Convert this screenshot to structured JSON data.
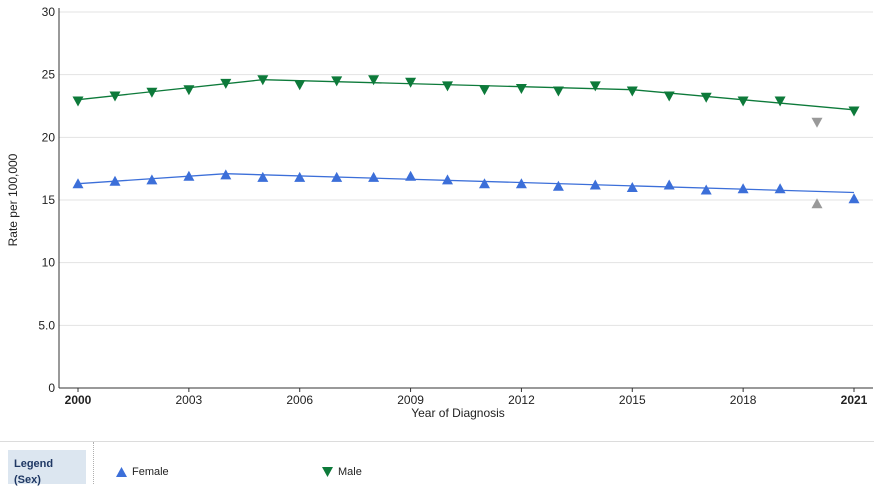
{
  "chart_data": {
    "type": "line",
    "title": "",
    "xlabel": "Year of Diagnosis",
    "ylabel": "Rate per 100,000",
    "xlim": [
      2000,
      2021
    ],
    "ylim": [
      0,
      30
    ],
    "x_ticks": [
      2000,
      2003,
      2006,
      2009,
      2012,
      2015,
      2018,
      2021
    ],
    "x_tick_labels": [
      "2000",
      "2003",
      "2006",
      "2009",
      "2012",
      "2015",
      "2018",
      "2021"
    ],
    "y_ticks": [
      0,
      5,
      10,
      15,
      20,
      25,
      30
    ],
    "y_tick_labels": [
      "0",
      "5.0",
      "10",
      "15",
      "20",
      "25",
      "30"
    ],
    "grid": "horizontal",
    "x": [
      2000,
      2001,
      2002,
      2003,
      2004,
      2005,
      2006,
      2007,
      2008,
      2009,
      2010,
      2011,
      2012,
      2013,
      2014,
      2015,
      2016,
      2017,
      2018,
      2019,
      2020,
      2021
    ],
    "series": [
      {
        "name": "Female",
        "marker": "triangle-up",
        "color": "#3c6fd9",
        "values": [
          16.3,
          16.5,
          16.6,
          16.9,
          17.0,
          16.8,
          16.8,
          16.8,
          16.8,
          16.9,
          16.6,
          16.3,
          16.3,
          16.1,
          16.2,
          16.0,
          16.2,
          15.8,
          15.9,
          15.9,
          14.7,
          15.1
        ],
        "trend": [
          [
            2000,
            16.3
          ],
          [
            2004,
            17.1
          ],
          [
            2021,
            15.6
          ]
        ]
      },
      {
        "name": "Male",
        "marker": "triangle-down",
        "color": "#0d7a3a",
        "values": [
          22.9,
          23.3,
          23.6,
          23.8,
          24.3,
          24.6,
          24.2,
          24.5,
          24.6,
          24.4,
          24.1,
          23.8,
          23.9,
          23.7,
          24.1,
          23.7,
          23.3,
          23.2,
          22.9,
          22.9,
          21.2,
          22.1
        ],
        "trend": [
          [
            2000,
            23.0
          ],
          [
            2005,
            24.6
          ],
          [
            2015,
            23.8
          ],
          [
            2021,
            22.2
          ]
        ]
      }
    ],
    "excluded": {
      "x": 2020,
      "color": "#999999"
    },
    "legend": {
      "title_line1": "Legend",
      "title_line2": "(Sex)",
      "placement": "bottom",
      "items": [
        {
          "label": "Female",
          "marker": "triangle-up",
          "color": "#3c6fd9"
        },
        {
          "label": "Male",
          "marker": "triangle-down",
          "color": "#0d7a3a"
        }
      ]
    }
  }
}
